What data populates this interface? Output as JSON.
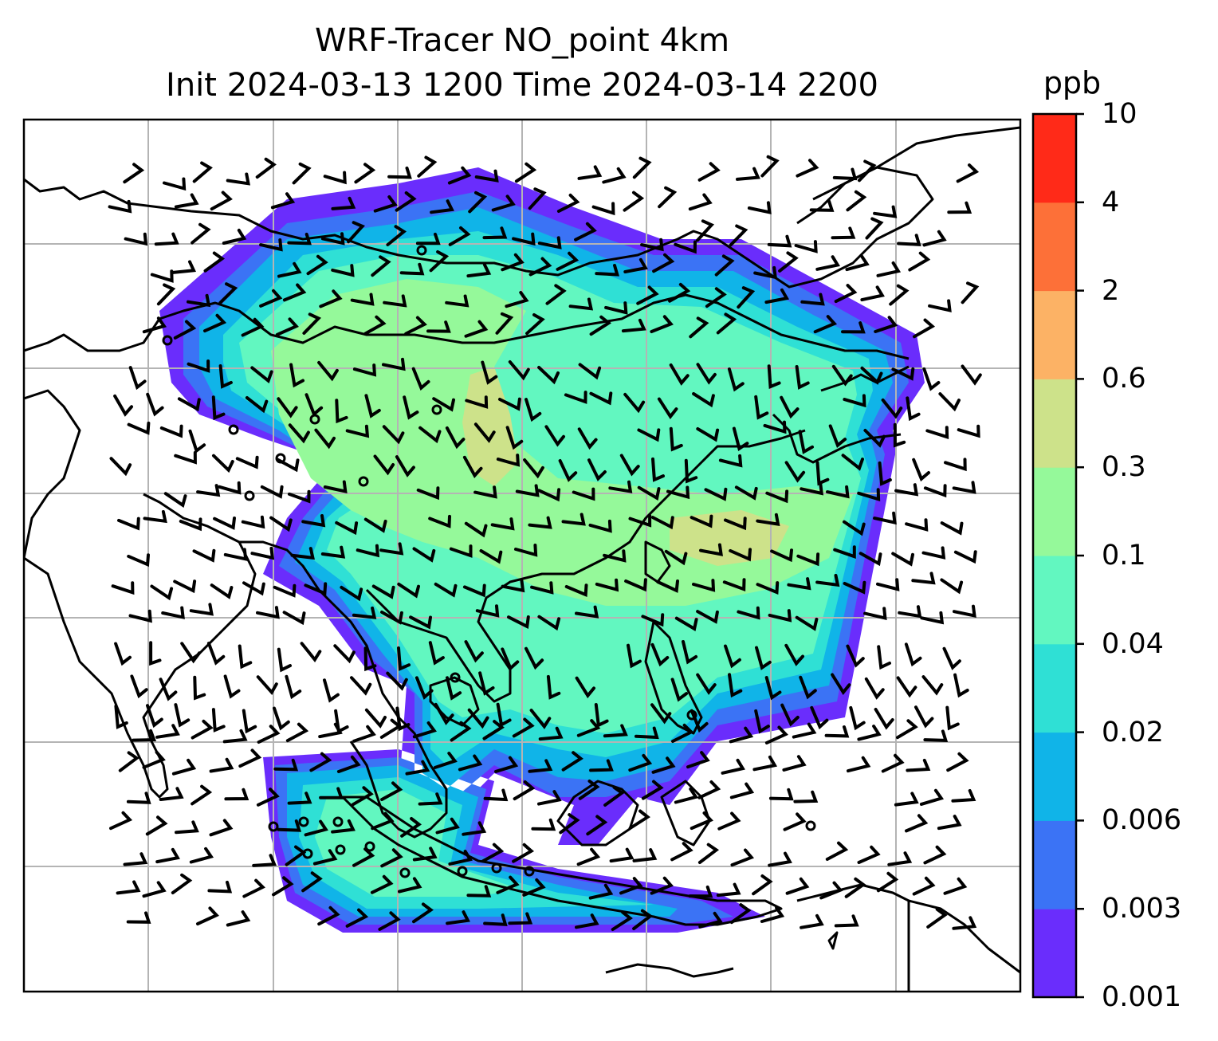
{
  "title_line1": "WRF-Tracer NO_point 4km",
  "title_line2": "Init 2024-03-13 1200 Time 2024-03-14 2200",
  "colorbar": {
    "unit": "ppb",
    "levels": [
      "0.001",
      "0.003",
      "0.006",
      "0.02",
      "0.04",
      "0.1",
      "0.3",
      "0.6",
      "2",
      "4",
      "10"
    ],
    "colors": [
      "#6a2dfc",
      "#3b73f5",
      "#10b4e8",
      "#2fe0d5",
      "#62f7c0",
      "#95f99a",
      "#cde28a",
      "#fcb265",
      "#fd7038",
      "#ff2a18"
    ]
  },
  "map": {
    "gridlines": "on",
    "gridline_color": "#b4b4b4",
    "coastline_color": "#000000",
    "features": [
      "coastlines",
      "country-borders",
      "wind-barbs",
      "calm-wind-circles",
      "tracer-concentration-fill"
    ]
  }
}
